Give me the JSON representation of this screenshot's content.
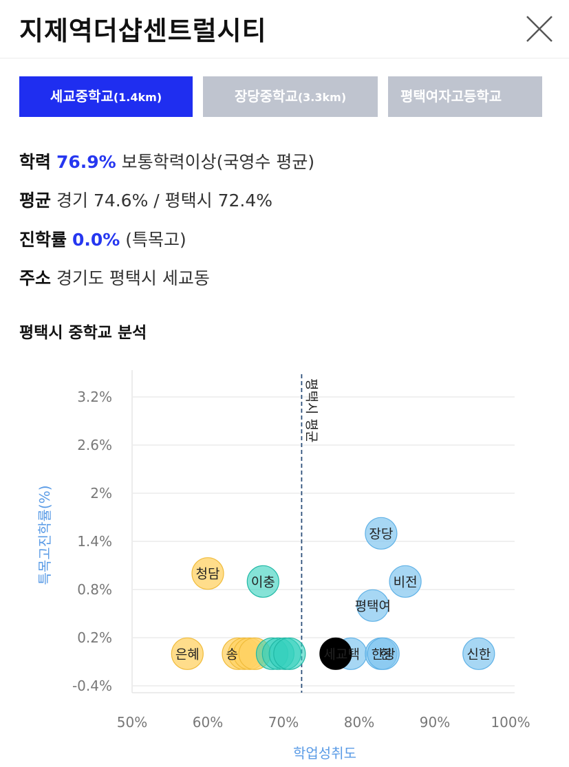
{
  "header": {
    "title": "지제역더샵센트럴시티"
  },
  "tabs": [
    {
      "label": "세교중학교",
      "distance": "(1.4km)",
      "active": true
    },
    {
      "label": "장당중학교",
      "distance": "(3.3km)",
      "active": false
    },
    {
      "label": "평택여자고등학교",
      "distance": "",
      "active": false
    }
  ],
  "info": {
    "academic": {
      "label": "학력",
      "value": "76.9%",
      "desc": "보통학력이상(국영수 평균)"
    },
    "average": {
      "label": "평균",
      "text": "경기 74.6% / 평택시 72.4%"
    },
    "advance": {
      "label": "진학률",
      "value": "0.0%",
      "desc": "(특목고)"
    },
    "address": {
      "label": "주소",
      "text": "경기도 평택시 세교동"
    }
  },
  "section_title": "평택시 중학교 분석",
  "colors": {
    "accent": "#1f2ef0",
    "yellow": "#ffd264",
    "teal": "#33d0bd",
    "blue": "#82c6ef",
    "selected": "#000000",
    "avg_line": "#2c4f7a"
  },
  "chart_data": {
    "type": "scatter",
    "xlabel": "학업성취도",
    "ylabel": "특목고진학률(%)",
    "xlim": [
      50,
      100
    ],
    "ylim": [
      -0.4,
      3.5
    ],
    "x_ticks": [
      "50%",
      "60%",
      "70%",
      "80%",
      "90%",
      "100%"
    ],
    "y_ticks": [
      "-0.4%",
      "0.2%",
      "0.8%",
      "1.4%",
      "2%",
      "2.6%",
      "3.2%"
    ],
    "x_tick_values": [
      50,
      60,
      70,
      80,
      90,
      100
    ],
    "y_tick_values": [
      -0.4,
      0.2,
      0.8,
      1.4,
      2.0,
      2.6,
      3.2
    ],
    "reference_line": {
      "x": 72.4,
      "label": "평택시 평균"
    },
    "points": [
      {
        "name": "은혜",
        "x": 57.3,
        "y": 0.0,
        "color": "yellow"
      },
      {
        "name": "청담",
        "x": 60.0,
        "y": 1.0,
        "color": "yellow"
      },
      {
        "name": "",
        "x": 64.0,
        "y": 0.0,
        "color": "yellow"
      },
      {
        "name": "",
        "x": 64.8,
        "y": 0.0,
        "color": "yellow"
      },
      {
        "name": "",
        "x": 65.5,
        "y": 0.0,
        "color": "yellow"
      },
      {
        "name": "",
        "x": 66.2,
        "y": 0.0,
        "color": "yellow"
      },
      {
        "name": "이충",
        "x": 67.3,
        "y": 0.9,
        "color": "teal"
      },
      {
        "name": "",
        "x": 68.5,
        "y": 0.0,
        "color": "teal"
      },
      {
        "name": "",
        "x": 69.3,
        "y": 0.0,
        "color": "teal"
      },
      {
        "name": "",
        "x": 70.2,
        "y": 0.0,
        "color": "teal"
      },
      {
        "name": "",
        "x": 70.8,
        "y": 0.0,
        "color": "teal"
      },
      {
        "name": "",
        "x": 78.9,
        "y": 0.0,
        "color": "blue"
      },
      {
        "name": "평택여",
        "x": 81.8,
        "y": 0.6,
        "color": "blue"
      },
      {
        "name": "장당",
        "x": 82.9,
        "y": 1.5,
        "color": "blue"
      },
      {
        "name": "",
        "x": 82.9,
        "y": 0.0,
        "color": "blue"
      },
      {
        "name": "한광",
        "x": 83.2,
        "y": 0.0,
        "color": "blue"
      },
      {
        "name": "비전",
        "x": 86.1,
        "y": 0.9,
        "color": "blue"
      },
      {
        "name": "신한",
        "x": 95.8,
        "y": 0.0,
        "color": "blue"
      },
      {
        "name": "세교",
        "x": 76.9,
        "y": 0.0,
        "color": "selected"
      }
    ],
    "overlap_labels": [
      {
        "text": "송",
        "x": 63.2,
        "y": 0.0
      },
      {
        "text": "택",
        "x": 79.3,
        "y": 0.0
      },
      {
        "text": "현",
        "x": 83.5,
        "y": 0.0
      }
    ]
  }
}
